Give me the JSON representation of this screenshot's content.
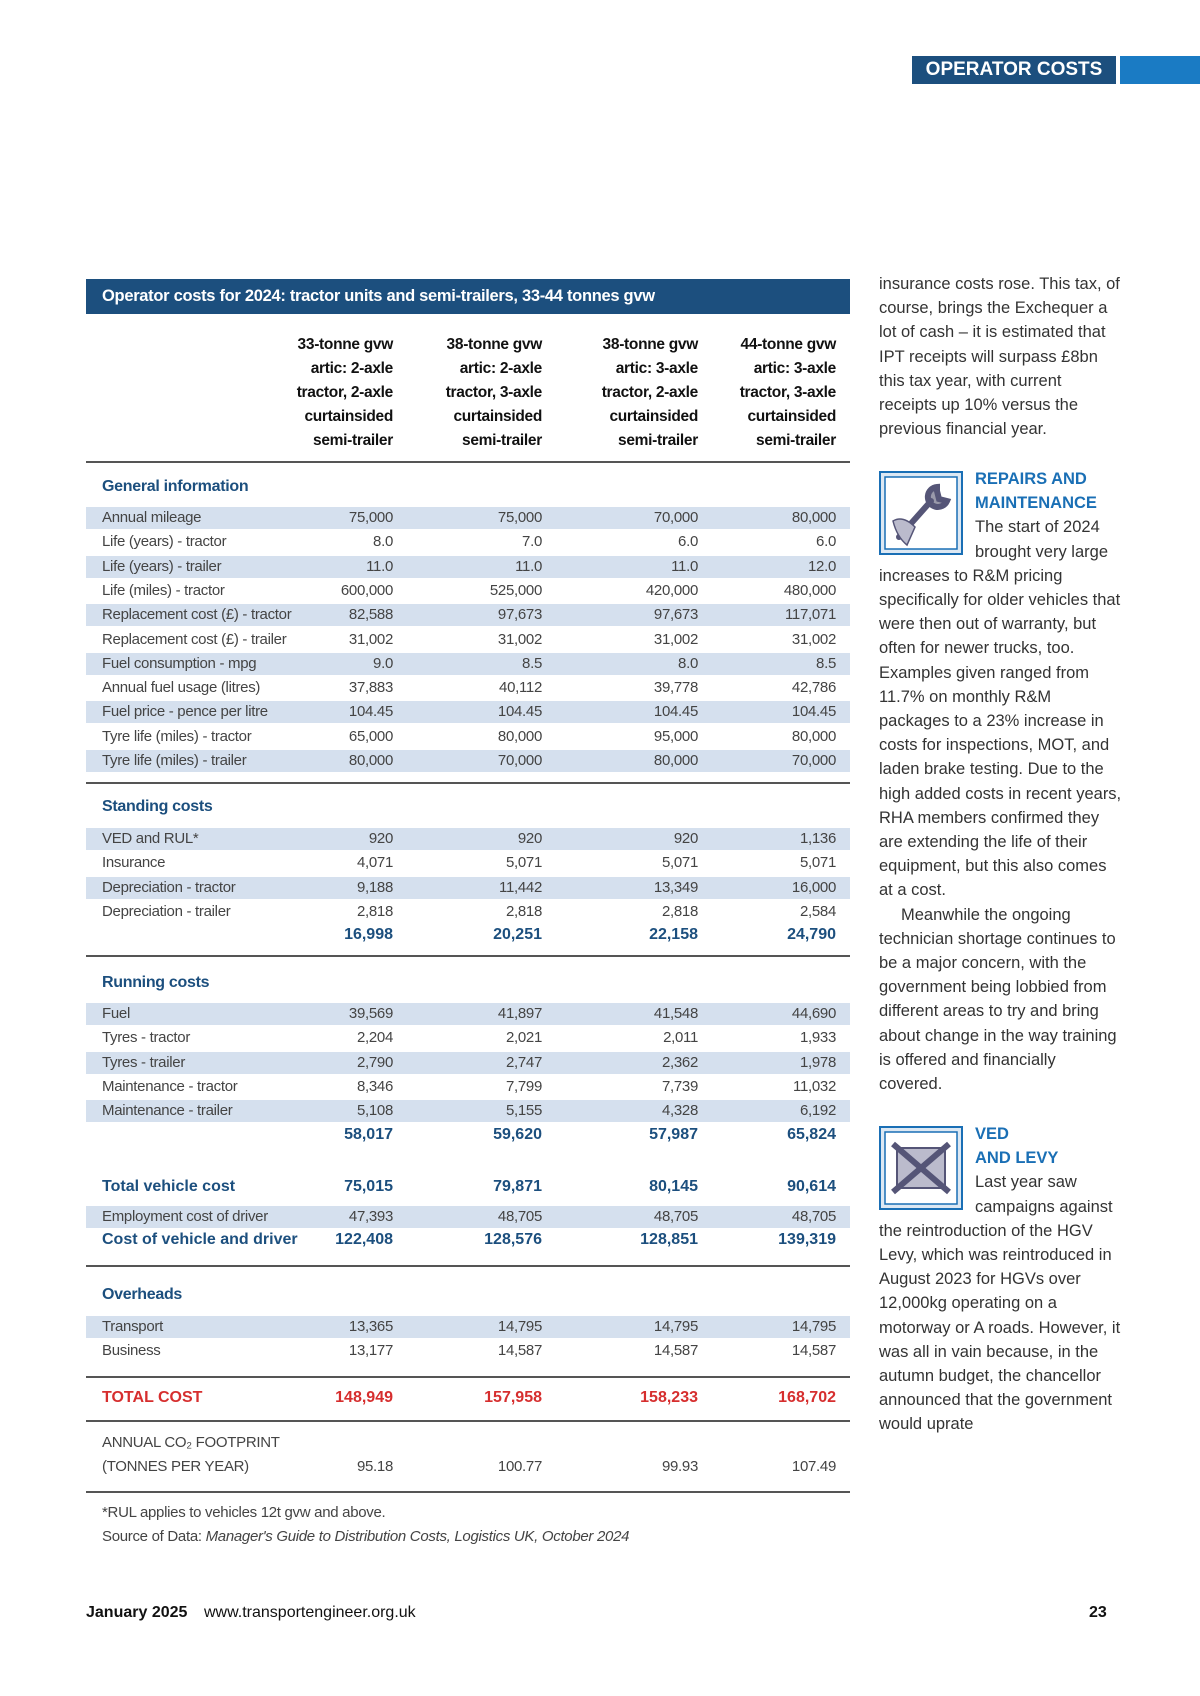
{
  "header": {
    "section": "OPERATOR COSTS"
  },
  "table": {
    "title": "Operator costs for 2024: tractor units and semi-trailers, 33-44 tonnes gvw",
    "columns": [
      [
        "33-tonne gvw",
        "artic: 2-axle",
        "tractor, 2-axle",
        "curtainsided",
        "semi-trailer"
      ],
      [
        "38-tonne gvw",
        "artic: 2-axle",
        "tractor, 3-axle",
        "curtainsided",
        "semi-trailer"
      ],
      [
        "38-tonne gvw",
        "artic: 3-axle",
        "tractor, 2-axle",
        "curtainsided",
        "semi-trailer"
      ],
      [
        "44-tonne gvw",
        "artic: 3-axle",
        "tractor, 3-axle",
        "curtainsided",
        "semi-trailer"
      ]
    ],
    "general": {
      "heading": "General information",
      "rows": [
        {
          "label": "Annual mileage",
          "values": [
            "75,000",
            "75,000",
            "70,000",
            "80,000"
          ]
        },
        {
          "label": "Life (years) - tractor",
          "values": [
            "8.0",
            "7.0",
            "6.0",
            "6.0"
          ]
        },
        {
          "label": "Life (years) - trailer",
          "values": [
            "11.0",
            "11.0",
            "11.0",
            "12.0"
          ]
        },
        {
          "label": "Life (miles) - tractor",
          "values": [
            "600,000",
            "525,000",
            "420,000",
            "480,000"
          ]
        },
        {
          "label": "Replacement cost (£) - tractor",
          "values": [
            "82,588",
            "97,673",
            "97,673",
            "117,071"
          ]
        },
        {
          "label": "Replacement cost (£) - trailer",
          "values": [
            "31,002",
            "31,002",
            "31,002",
            "31,002"
          ]
        },
        {
          "label": "Fuel consumption - mpg",
          "values": [
            "9.0",
            "8.5",
            "8.0",
            "8.5"
          ]
        },
        {
          "label": "Annual fuel usage (litres)",
          "values": [
            "37,883",
            "40,112",
            "39,778",
            "42,786"
          ]
        },
        {
          "label": "Fuel price - pence per litre",
          "values": [
            "104.45",
            "104.45",
            "104.45",
            "104.45"
          ]
        },
        {
          "label": "Tyre life (miles) - tractor",
          "values": [
            "65,000",
            "80,000",
            "95,000",
            "80,000"
          ]
        },
        {
          "label": "Tyre life (miles) - trailer",
          "values": [
            "80,000",
            "70,000",
            "80,000",
            "70,000"
          ]
        }
      ]
    },
    "standing": {
      "heading": "Standing costs",
      "rows": [
        {
          "label": "VED and RUL*",
          "values": [
            "920",
            "920",
            "920",
            "1,136"
          ]
        },
        {
          "label": "Insurance",
          "values": [
            "4,071",
            "5,071",
            "5,071",
            "5,071"
          ]
        },
        {
          "label": "Depreciation - tractor",
          "values": [
            "9,188",
            "11,442",
            "13,349",
            "16,000"
          ]
        },
        {
          "label": "Depreciation - trailer",
          "values": [
            "2,818",
            "2,818",
            "2,818",
            "2,584"
          ]
        }
      ],
      "subtotal": [
        "16,998",
        "20,251",
        "22,158",
        "24,790"
      ]
    },
    "running": {
      "heading": "Running costs",
      "rows": [
        {
          "label": "Fuel",
          "values": [
            "39,569",
            "41,897",
            "41,548",
            "44,690"
          ]
        },
        {
          "label": "Tyres - tractor",
          "values": [
            "2,204",
            "2,021",
            "2,011",
            "1,933"
          ]
        },
        {
          "label": "Tyres - trailer",
          "values": [
            "2,790",
            "2,747",
            "2,362",
            "1,978"
          ]
        },
        {
          "label": "Maintenance - tractor",
          "values": [
            "8,346",
            "7,799",
            "7,739",
            "11,032"
          ]
        },
        {
          "label": "Maintenance - trailer",
          "values": [
            "5,108",
            "5,155",
            "4,328",
            "6,192"
          ]
        }
      ],
      "subtotal": [
        "58,017",
        "59,620",
        "57,987",
        "65,824"
      ]
    },
    "vehicle": {
      "total": {
        "label": "Total vehicle cost",
        "values": [
          "75,015",
          "79,871",
          "80,145",
          "90,614"
        ]
      },
      "rows": [
        {
          "label": "Employment cost of driver",
          "values": [
            "47,393",
            "48,705",
            "48,705",
            "48,705"
          ]
        }
      ],
      "combined": {
        "label": "Cost of vehicle and driver",
        "values": [
          "122,408",
          "128,576",
          "128,851",
          "139,319"
        ]
      }
    },
    "overheads": {
      "heading": "Overheads",
      "rows": [
        {
          "label": "Transport",
          "values": [
            "13,365",
            "14,795",
            "14,795",
            "14,795"
          ]
        },
        {
          "label": "Business",
          "values": [
            "13,177",
            "14,587",
            "14,587",
            "14,587"
          ]
        }
      ]
    },
    "total_cost": {
      "label": "TOTAL COST",
      "values": [
        "148,949",
        "157,958",
        "158,233",
        "168,702"
      ]
    },
    "co2": {
      "label": [
        "ANNUAL CO₂ FOOTPRINT",
        "(TONNES PER YEAR)"
      ],
      "values": [
        "95.18",
        "100.77",
        "99.93",
        "107.49"
      ]
    },
    "notes": [
      "*RUL applies to vehicles 12t gvw and above."
    ],
    "source": {
      "prefix": "Source of Data: ",
      "text": "Manager's Guide to Distribution Costs, Logistics UK, October 2024"
    }
  },
  "article": {
    "intro": "insurance costs rose. This tax, of course, brings the Exchequer a lot of cash – it is estimated that IPT receipts will surpass £8bn this tax year, with current receipts up 10% versus the previous financial year.",
    "repairs": {
      "heading": [
        "REPAIRS AND",
        "MAINTENANCE"
      ],
      "paragraphs": [
        "The start of 2024 brought very large increases to R&M pricing specifically for older vehicles that were then out of warranty, but often for newer trucks, too. Examples given ranged from 11.7% on monthly R&M packages to a 23% increase in costs for inspections, MOT, and laden brake testing. Due to the high added costs in recent years, RHA members confirmed they are extending the life of their equipment, but this also comes at a cost.",
        "Meanwhile the ongoing technician shortage continues to be a major concern, with the government being lobbied from different areas to try and bring about change in the way training is offered and financially covered."
      ]
    },
    "ved": {
      "heading": [
        "VED",
        "AND LEVY"
      ],
      "paragraphs": [
        "Last year saw campaigns against the reintroduction of the HGV Levy, which was reintroduced in August 2023 for HGVs over 12,000kg operating on a motorway or A roads. However, it was all in vain because, in the autumn budget, the chancellor announced that the government would uprate"
      ]
    }
  },
  "footer": {
    "date": "January 2025",
    "url": "www.transportengineer.org.uk",
    "page": "23"
  }
}
